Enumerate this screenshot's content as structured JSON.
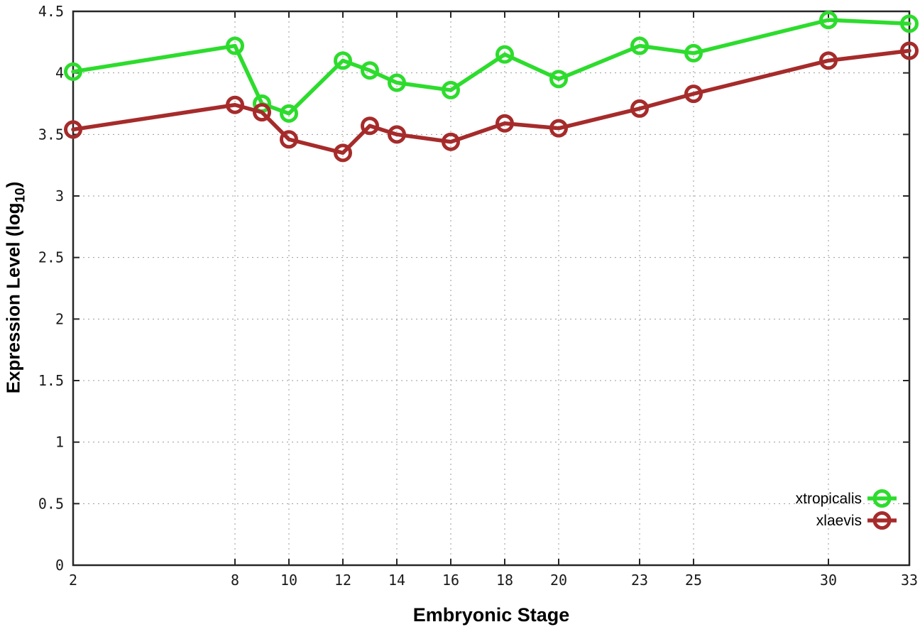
{
  "chart_data": {
    "type": "line",
    "title": "",
    "xlabel": "Embryonic Stage",
    "ylabel": "Expression Level (log10)",
    "ylabel_parts": {
      "pre": "Expression Level (log",
      "sub": "10",
      "post": ")"
    },
    "x": [
      2,
      8,
      9,
      10,
      12,
      13,
      14,
      16,
      18,
      20,
      23,
      25,
      30,
      33
    ],
    "series": [
      {
        "name": "xtropicalis",
        "color": "#2ddc2d",
        "values": [
          4.01,
          4.22,
          3.75,
          3.67,
          4.1,
          4.02,
          3.92,
          3.86,
          4.15,
          3.95,
          4.22,
          4.16,
          4.43,
          4.4
        ]
      },
      {
        "name": "xlaevis",
        "color": "#a62b2b",
        "values": [
          3.54,
          3.74,
          3.68,
          3.46,
          3.35,
          3.57,
          3.5,
          3.44,
          3.59,
          3.55,
          3.71,
          3.83,
          4.1,
          4.18
        ]
      }
    ],
    "xticks": [
      2,
      8,
      10,
      12,
      14,
      16,
      18,
      20,
      23,
      25,
      30,
      33
    ],
    "yticks": [
      0,
      0.5,
      1,
      1.5,
      2,
      2.5,
      3,
      3.5,
      4,
      4.5
    ],
    "xlim": [
      2,
      33
    ],
    "ylim": [
      0,
      4.5
    ],
    "grid": true,
    "grid_style": "dotted",
    "marker": "open-circle",
    "legend_position": "inside-bottom-right",
    "legend_entries": [
      "xtropicalis",
      "xlaevis"
    ]
  },
  "colors": {
    "series_xtropicalis": "#2ddc2d",
    "series_xlaevis": "#a62b2b",
    "grid": "#9a9a9a",
    "axis": "#262626",
    "tick_text": "#1a1a1a",
    "background": "#ffffff"
  }
}
